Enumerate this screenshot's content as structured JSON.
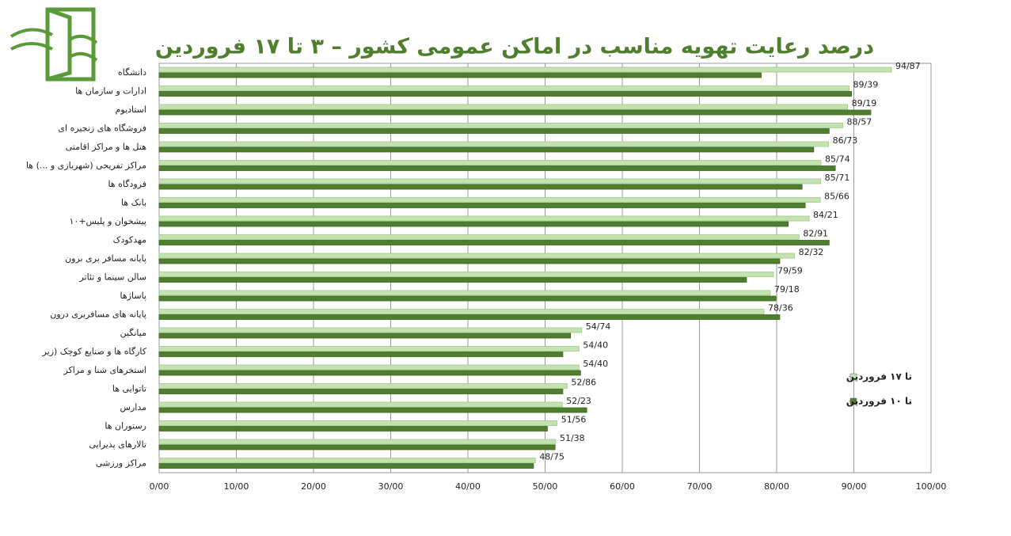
{
  "chart_data": {
    "type": "hbar",
    "title": "درصد رعایت تهویه مناسب در اماکن عمومی کشور – ۳ تا ۱۷ فروردین",
    "categories": [
      "دانشگاه",
      "ادارات و سازمان ها",
      "استادیوم",
      "فروشگاه های زنجیره ای",
      "هتل ها و مراکز اقامتی",
      "مراکز تفریحی (شهربازی و ...) ها",
      "فرودگاه ها",
      "بانک ها",
      "پیشخوان و پلیس+۱۰",
      "مهدکودک",
      "پایانه مسافر بری برون",
      "سالن سینما و تئاتر",
      "پاساژها",
      "پایانه های مسافربری درون",
      "میانگین",
      "کارگاه ها و صنایع کوچک (زیر",
      "استخرهای شنا و مراکز",
      "تاتوایی ها",
      "مدارس",
      "رستوران ها",
      "تالارهای پذیرایی",
      "مراکز ورزشی"
    ],
    "series": [
      {
        "name": "تا ۱۷ فروردین",
        "color": "#c4e3b0",
        "values": [
          94.87,
          89.39,
          89.19,
          88.57,
          86.73,
          85.74,
          85.71,
          85.66,
          84.21,
          82.91,
          82.32,
          79.59,
          79.18,
          78.36,
          54.74,
          54.4,
          54.4,
          52.86,
          52.23,
          51.56,
          51.38,
          48.75
        ],
        "value_labels": [
          "94/87",
          "89/39",
          "89/19",
          "88/57",
          "86/73",
          "85/74",
          "85/71",
          "85/66",
          "84/21",
          "82/91",
          "82/32",
          "79/59",
          "79/18",
          "78/36",
          "54/74",
          "54/40",
          "54/40",
          "52/86",
          "52/23",
          "51/56",
          "51/38",
          "48/75"
        ]
      },
      {
        "name": "تا ۱۰ فروردین",
        "color": "#4f7f2e",
        "values": [
          78.0,
          89.7,
          92.2,
          86.8,
          84.8,
          87.6,
          83.3,
          83.7,
          81.5,
          86.8,
          80.4,
          76.1,
          79.9,
          80.4,
          53.3,
          52.3,
          54.6,
          52.3,
          55.4,
          50.3,
          51.3,
          48.5
        ]
      }
    ],
    "xlim": [
      0,
      100
    ],
    "xticks": [
      {
        "value": 0,
        "label": "0/00"
      },
      {
        "value": 10,
        "label": "10/00"
      },
      {
        "value": 20,
        "label": "20/00"
      },
      {
        "value": 30,
        "label": "30/00"
      },
      {
        "value": 40,
        "label": "40/00"
      },
      {
        "value": 50,
        "label": "50/00"
      },
      {
        "value": 60,
        "label": "60/00"
      },
      {
        "value": 70,
        "label": "70/00"
      },
      {
        "value": 80,
        "label": "80/00"
      },
      {
        "value": 90,
        "label": "90/00"
      },
      {
        "value": 100,
        "label": "100/00"
      }
    ],
    "grid": true,
    "legend": "right"
  }
}
